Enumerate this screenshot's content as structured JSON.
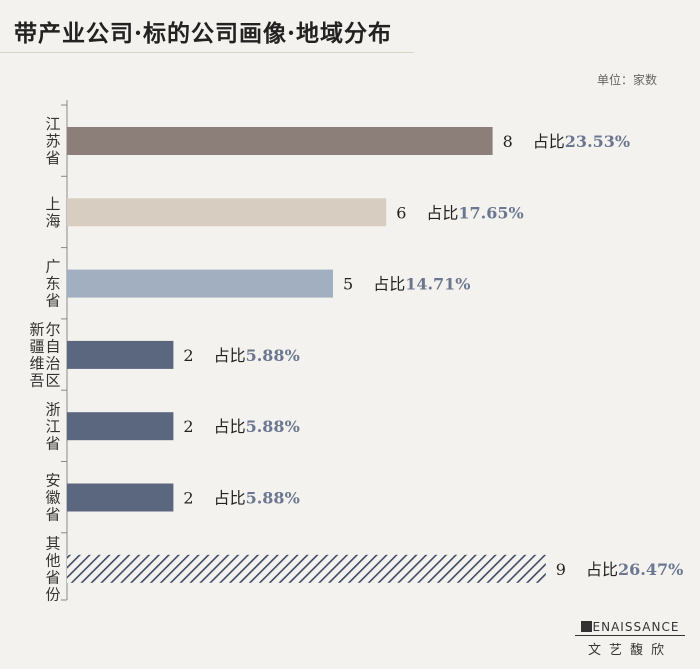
{
  "title": "带产业公司·标的公司画像·地域分布",
  "unit": "单位：家数",
  "footer": {
    "brand": "ENAISSANCE",
    "brand_cn": "文艺馥欣"
  },
  "chart_data": {
    "type": "bar",
    "orientation": "horizontal",
    "categories": [
      "江苏省",
      "上海",
      "广东省",
      "新疆维吾尔自治区",
      "浙江省",
      "安徽省",
      "其他省份"
    ],
    "category_label_lines": [
      [
        "江苏省"
      ],
      [
        "上海"
      ],
      [
        "广东省"
      ],
      [
        "新疆维吾",
        "尔自治区"
      ],
      [
        "浙江省"
      ],
      [
        "安徽省"
      ],
      [
        "其他省份"
      ]
    ],
    "values": [
      8,
      6,
      5,
      2,
      2,
      2,
      9
    ],
    "value_labels": [
      "8",
      "6",
      "5",
      "2",
      "2",
      "2",
      "9"
    ],
    "share_prefix": "占比",
    "shares": [
      "23.53%",
      "17.65%",
      "14.71%",
      "5.88%",
      "5.88%",
      "5.88%",
      "26.47%"
    ],
    "colors": [
      "#8c7f79",
      "#d8cdc1",
      "#a2afc1",
      "#5b667f",
      "#5b667f",
      "#5b667f",
      "hatch"
    ],
    "accent_text_color": "#6b7790",
    "xlim": [
      0,
      9
    ],
    "grid": false,
    "legend": "none"
  }
}
